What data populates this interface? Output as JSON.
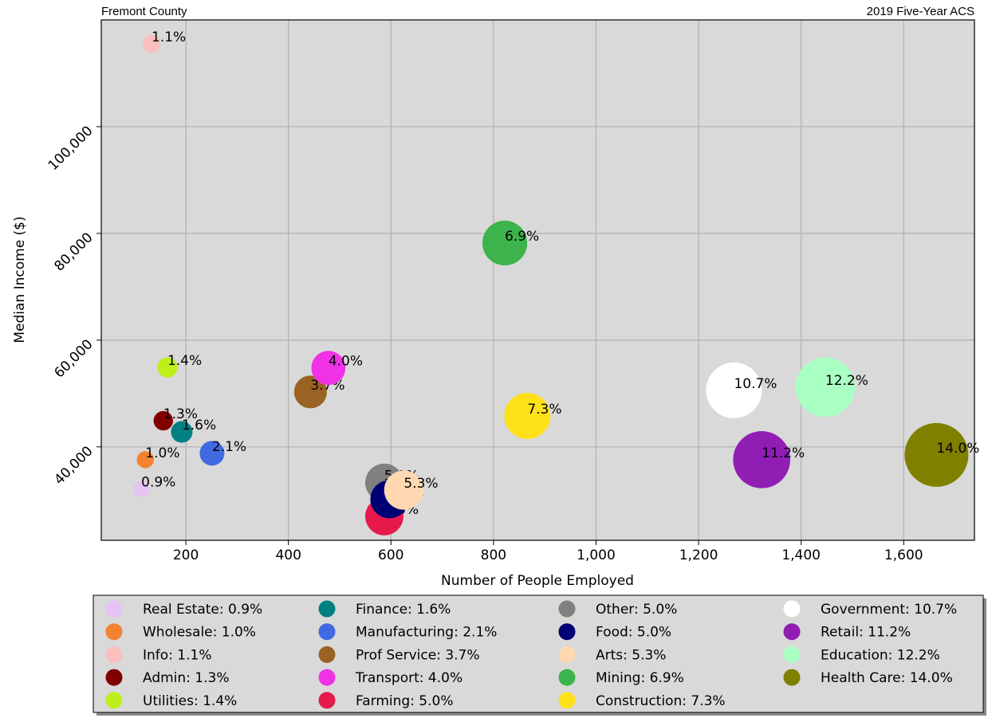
{
  "chart_data": {
    "type": "scatter",
    "title": "Fremont County",
    "subtitle": "2019 Five-Year ACS",
    "x_label": "Number of People Employed",
    "y_label": "Median Income ($)",
    "xlim": [
      35,
      1738
    ],
    "ylim": [
      22500,
      120000
    ],
    "xticks": [
      200,
      400,
      600,
      800,
      {
        "value": 1000,
        "label": "1,000"
      },
      {
        "value": 1200,
        "label": "1,200"
      },
      {
        "value": 1400,
        "label": "1,400"
      },
      {
        "value": 1600,
        "label": "1,600"
      }
    ],
    "yticks": [
      {
        "value": 40000,
        "label": "40,000"
      },
      {
        "value": 60000,
        "label": "60,000"
      },
      {
        "value": 80000,
        "label": "80,000"
      },
      {
        "value": 100000,
        "label": "100,000"
      }
    ],
    "grid": true,
    "legend": "bottom",
    "series": [
      {
        "name": "Real Estate: 0.9%",
        "color": "#e6c3f5",
        "x": [
          113
        ],
        "values": [
          32100
        ],
        "sizes": [
          0.9
        ],
        "value_labels": [
          "0.9%"
        ]
      },
      {
        "name": "Wholesale: 1.0%",
        "color": "#f58231",
        "x": [
          121
        ],
        "values": [
          37600
        ],
        "sizes": [
          1.0
        ],
        "value_labels": [
          "1.0%"
        ]
      },
      {
        "name": "Info: 1.1%",
        "color": "#fbbebe",
        "x": [
          133
        ],
        "values": [
          115500
        ],
        "sizes": [
          1.1
        ],
        "value_labels": [
          "1.1%"
        ]
      },
      {
        "name": "Admin: 1.3%",
        "color": "#800000",
        "x": [
          156
        ],
        "values": [
          44900
        ],
        "sizes": [
          1.3
        ],
        "value_labels": [
          "1.3%"
        ]
      },
      {
        "name": "Utilities: 1.4%",
        "color": "#bfef1a",
        "x": [
          164
        ],
        "values": [
          54900
        ],
        "sizes": [
          1.4
        ],
        "value_labels": [
          "1.4%"
        ]
      },
      {
        "name": "Finance: 1.6%",
        "color": "#008080",
        "x": [
          192
        ],
        "values": [
          42800
        ],
        "sizes": [
          1.6
        ],
        "value_labels": [
          "1.6%"
        ]
      },
      {
        "name": "Manufacturing: 2.1%",
        "color": "#4169e1",
        "x": [
          251
        ],
        "values": [
          38800
        ],
        "sizes": [
          2.1
        ],
        "value_labels": [
          "2.1%"
        ]
      },
      {
        "name": "Prof Service: 3.7%",
        "color": "#9a6324",
        "x": [
          443
        ],
        "values": [
          50300
        ],
        "sizes": [
          3.7
        ],
        "value_labels": [
          "3.7%"
        ]
      },
      {
        "name": "Transport: 4.0%",
        "color": "#f032e6",
        "x": [
          478
        ],
        "values": [
          54800
        ],
        "sizes": [
          4.0
        ],
        "value_labels": [
          "4.0%"
        ]
      },
      {
        "name": "Farming: 5.0%",
        "color": "#e6194b",
        "x": [
          587
        ],
        "values": [
          27000
        ],
        "sizes": [
          5.0
        ],
        "value_labels": [
          "5.0%"
        ]
      },
      {
        "name": "Other: 5.0%",
        "color": "#808080",
        "x": [
          587
        ],
        "values": [
          33300
        ],
        "sizes": [
          5.0
        ],
        "value_labels": [
          "5.0%"
        ]
      },
      {
        "name": "Food: 5.0%",
        "color": "#000075",
        "x": [
          597
        ],
        "values": [
          30200
        ],
        "sizes": [
          5.0
        ],
        "value_labels": [
          "5.0%"
        ]
      },
      {
        "name": "Arts: 5.3%",
        "color": "#ffd8b1",
        "x": [
          625
        ],
        "values": [
          31900
        ],
        "sizes": [
          5.3
        ],
        "value_labels": [
          "5.3%"
        ]
      },
      {
        "name": "Mining: 6.9%",
        "color": "#3cb44b",
        "x": [
          822
        ],
        "values": [
          78200
        ],
        "sizes": [
          6.9
        ],
        "value_labels": [
          "6.9%"
        ]
      },
      {
        "name": "Construction: 7.3%",
        "color": "#ffe119",
        "x": [
          866
        ],
        "values": [
          45800
        ],
        "sizes": [
          7.3
        ],
        "value_labels": [
          "7.3%"
        ]
      },
      {
        "name": "Government: 10.7%",
        "color": "#ffffff",
        "x": [
          1269
        ],
        "values": [
          50600
        ],
        "sizes": [
          10.7
        ],
        "value_labels": [
          "10.7%"
        ]
      },
      {
        "name": "Retail: 11.2%",
        "color": "#911eb4",
        "x": [
          1323
        ],
        "values": [
          37600
        ],
        "sizes": [
          11.2
        ],
        "value_labels": [
          "11.2%"
        ]
      },
      {
        "name": "Education: 12.2%",
        "color": "#aaffc3",
        "x": [
          1447
        ],
        "values": [
          51200
        ],
        "sizes": [
          12.2
        ],
        "value_labels": [
          "12.2%"
        ]
      },
      {
        "name": "Health Care: 14.0%",
        "color": "#808000",
        "x": [
          1664
        ],
        "values": [
          38500
        ],
        "sizes": [
          14.0
        ],
        "value_labels": [
          "14.0%"
        ]
      }
    ]
  }
}
